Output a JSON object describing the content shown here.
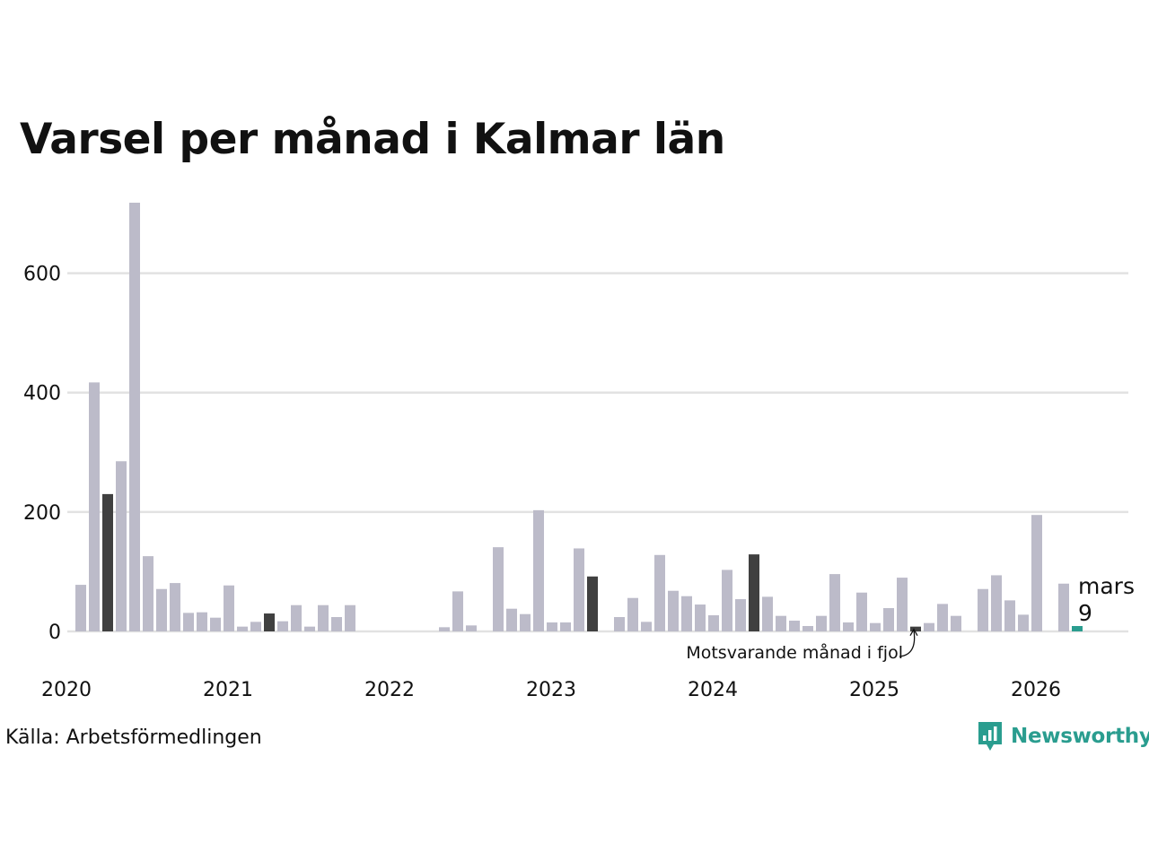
{
  "chart_data": {
    "type": "bar",
    "title": "Varsel per månad i Kalmar län",
    "xlabel": "",
    "ylabel": "",
    "ylim": [
      0,
      720
    ],
    "y_ticks": [
      0,
      200,
      400,
      600
    ],
    "x_tick_labels": [
      "2020",
      "2021",
      "2022",
      "2023",
      "2024",
      "2025",
      "2026"
    ],
    "start_month": "2020-01",
    "series": [
      {
        "name": "Varsel",
        "values": [
          78,
          417,
          230,
          285,
          718,
          126,
          71,
          81,
          31,
          32,
          23,
          77,
          8,
          16,
          30,
          17,
          44,
          8,
          44,
          24,
          44,
          0,
          0,
          0,
          0,
          0,
          0,
          7,
          67,
          10,
          0,
          141,
          38,
          29,
          203,
          15,
          15,
          139,
          92,
          0,
          24,
          56,
          16,
          128,
          68,
          59,
          45,
          27,
          103,
          54,
          129,
          58,
          26,
          18,
          9,
          26,
          96,
          15,
          65,
          14,
          39,
          90,
          8,
          14,
          46,
          26,
          0,
          71,
          94,
          52,
          28,
          195,
          0,
          80,
          9
        ]
      }
    ],
    "highlighted_months": [
      2,
      14,
      38,
      50,
      62
    ],
    "current_month": 74,
    "colors": {
      "default": "#bcbbc9",
      "same_month_previous_years": "#404040",
      "current": "#2a9d8f",
      "grid": "#e2e2e2"
    },
    "callout": {
      "month_label": "mars",
      "value_label": "9"
    },
    "annotation": "Motsvarande månad i fjol"
  },
  "source": "Källa: Arbetsförmedlingen",
  "brand": {
    "name": "Newsworthy",
    "icon": "newsworthy-logo-icon",
    "color": "#2a9d8f"
  }
}
